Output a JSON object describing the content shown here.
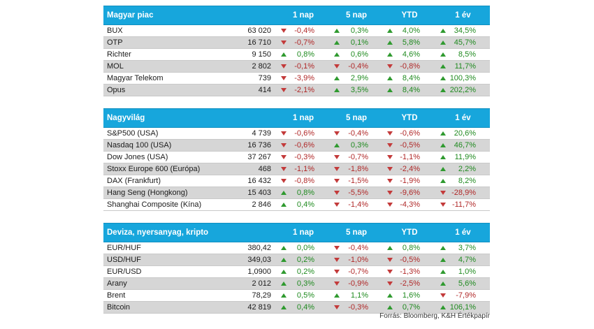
{
  "columns": [
    "1 nap",
    "5 nap",
    "YTD",
    "1 év"
  ],
  "colors": {
    "header_bg": "#17a6dc",
    "up": "#2f9a2f",
    "down": "#c33a3a",
    "alt_row": "#d6d6d6"
  },
  "sections": [
    {
      "title": "Magyar piac",
      "rows": [
        {
          "name": "BUX",
          "price": "63 020",
          "d1": "-0,4%",
          "d5": "0,3%",
          "ytd": "4,0%",
          "y1": "34,5%"
        },
        {
          "name": "OTP",
          "price": "16 710",
          "d1": "-0,7%",
          "d5": "0,1%",
          "ytd": "5,8%",
          "y1": "45,7%"
        },
        {
          "name": "Richter",
          "price": "9 150",
          "d1": "0,8%",
          "d5": "0,6%",
          "ytd": "4,6%",
          "y1": "8,5%"
        },
        {
          "name": "MOL",
          "price": "2 802",
          "d1": "-0,1%",
          "d5": "-0,4%",
          "ytd": "-0,8%",
          "y1": "11,7%"
        },
        {
          "name": "Magyar Telekom",
          "price": "739",
          "d1": "-3,9%",
          "d5": "2,9%",
          "ytd": "8,4%",
          "y1": "100,3%"
        },
        {
          "name": "Opus",
          "price": "414",
          "d1": "-2,1%",
          "d5": "3,5%",
          "ytd": "8,4%",
          "y1": "202,2%"
        }
      ]
    },
    {
      "title": "Nagyvilág",
      "rows": [
        {
          "name": "S&P500 (USA)",
          "price": "4 739",
          "d1": "-0,6%",
          "d5": "-0,4%",
          "ytd": "-0,6%",
          "y1": "20,6%"
        },
        {
          "name": "Nasdaq 100 (USA)",
          "price": "16 736",
          "d1": "-0,6%",
          "d5": "0,3%",
          "ytd": "-0,5%",
          "y1": "46,7%"
        },
        {
          "name": "Dow Jones (USA)",
          "price": "37 267",
          "d1": "-0,3%",
          "d5": "-0,7%",
          "ytd": "-1,1%",
          "y1": "11,9%"
        },
        {
          "name": "Stoxx Europe 600 (Európa)",
          "price": "468",
          "d1": "-1,1%",
          "d5": "-1,8%",
          "ytd": "-2,4%",
          "y1": "2,2%"
        },
        {
          "name": "DAX (Frankfurt)",
          "price": "16 432",
          "d1": "-0,8%",
          "d5": "-1,5%",
          "ytd": "-1,9%",
          "y1": "8,2%"
        },
        {
          "name": "Hang Seng (Hongkong)",
          "price": "15 403",
          "d1": "0,8%",
          "d5": "-5,5%",
          "ytd": "-9,6%",
          "y1": "-28,9%"
        },
        {
          "name": "Shanghai Composite (Kína)",
          "price": "2 846",
          "d1": "0,4%",
          "d5": "-1,4%",
          "ytd": "-4,3%",
          "y1": "-11,7%"
        }
      ]
    },
    {
      "title": "Deviza, nyersanyag, kripto",
      "rows": [
        {
          "name": "EUR/HUF",
          "price": "380,42",
          "d1": "0,0%",
          "d5": "-0,4%",
          "ytd": "0,8%",
          "y1": "3,7%"
        },
        {
          "name": "USD/HUF",
          "price": "349,03",
          "d1": "0,2%",
          "d5": "-1,0%",
          "ytd": "-0,5%",
          "y1": "4,7%"
        },
        {
          "name": "EUR/USD",
          "price": "1,0900",
          "d1": "0,2%",
          "d5": "-0,7%",
          "ytd": "-1,3%",
          "y1": "1,0%"
        },
        {
          "name": "Arany",
          "price": "2 012",
          "d1": "0,3%",
          "d5": "-0,9%",
          "ytd": "-2,5%",
          "y1": "5,6%"
        },
        {
          "name": "Brent",
          "price": "78,29",
          "d1": "0,5%",
          "d5": "1,1%",
          "ytd": "1,6%",
          "y1": "-7,9%"
        },
        {
          "name": "Bitcoin",
          "price": "42 819",
          "d1": "0,4%",
          "d5": "-0,3%",
          "ytd": "0,7%",
          "y1": "106,1%"
        }
      ]
    }
  ],
  "source": "Forrás: Bloomberg, K&H Értékpapír"
}
